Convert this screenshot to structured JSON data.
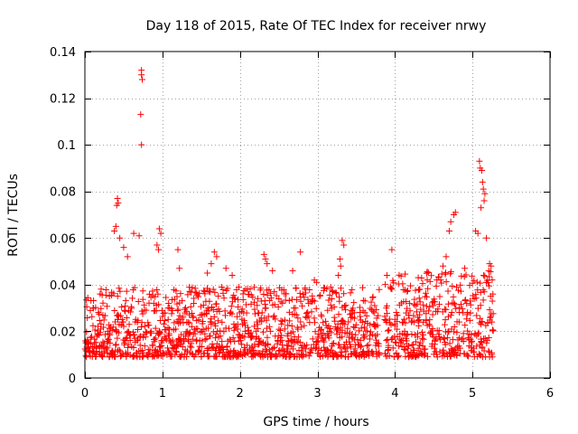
{
  "chart_data": {
    "type": "scatter",
    "title": "Day 118 of 2015, Rate Of TEC Index for receiver nrwy",
    "xlabel": "GPS time / hours",
    "ylabel": "ROTI / TECUs",
    "xlim": [
      0,
      6
    ],
    "ylim": [
      0,
      0.14
    ],
    "xticks": [
      0,
      1,
      2,
      3,
      4,
      5,
      6
    ],
    "xtick_labels": [
      "0",
      "1",
      "2",
      "3",
      "4",
      "5",
      "6"
    ],
    "yticks": [
      0,
      0.02,
      0.04,
      0.06,
      0.08,
      0.1,
      0.12,
      0.14
    ],
    "ytick_labels": [
      "0",
      "0.02",
      "0.04",
      "0.06",
      "0.08",
      "0.1",
      "0.12",
      "0.14"
    ],
    "grid": true,
    "marker": "+",
    "color": "#ff0000",
    "series": [
      {
        "name": "ROTI",
        "points": [
          [
            0.73,
            0.132
          ],
          [
            0.73,
            0.13
          ],
          [
            0.74,
            0.128
          ],
          [
            0.72,
            0.113
          ],
          [
            0.73,
            0.1
          ],
          [
            0.42,
            0.077
          ],
          [
            0.43,
            0.075
          ],
          [
            0.41,
            0.074
          ],
          [
            0.4,
            0.065
          ],
          [
            0.38,
            0.063
          ],
          [
            0.45,
            0.06
          ],
          [
            0.5,
            0.056
          ],
          [
            0.55,
            0.052
          ],
          [
            0.63,
            0.062
          ],
          [
            0.7,
            0.061
          ],
          [
            0.96,
            0.064
          ],
          [
            0.98,
            0.062
          ],
          [
            0.93,
            0.057
          ],
          [
            0.95,
            0.055
          ],
          [
            1.2,
            0.055
          ],
          [
            1.22,
            0.047
          ],
          [
            1.67,
            0.054
          ],
          [
            1.7,
            0.052
          ],
          [
            1.63,
            0.049
          ],
          [
            1.58,
            0.045
          ],
          [
            1.82,
            0.047
          ],
          [
            1.9,
            0.044
          ],
          [
            2.31,
            0.053
          ],
          [
            2.33,
            0.051
          ],
          [
            2.35,
            0.049
          ],
          [
            2.42,
            0.046
          ],
          [
            2.78,
            0.054
          ],
          [
            2.68,
            0.046
          ],
          [
            2.96,
            0.042
          ],
          [
            2.99,
            0.041
          ],
          [
            3.32,
            0.059
          ],
          [
            3.34,
            0.057
          ],
          [
            3.29,
            0.051
          ],
          [
            3.3,
            0.048
          ],
          [
            3.27,
            0.044
          ],
          [
            3.96,
            0.055
          ],
          [
            4.3,
            0.043
          ],
          [
            4.32,
            0.038
          ],
          [
            4.62,
            0.048
          ],
          [
            4.66,
            0.052
          ],
          [
            4.76,
            0.07
          ],
          [
            4.78,
            0.071
          ],
          [
            4.72,
            0.067
          ],
          [
            4.7,
            0.063
          ],
          [
            4.9,
            0.047
          ],
          [
            5.04,
            0.063
          ],
          [
            5.07,
            0.062
          ],
          [
            5.09,
            0.093
          ],
          [
            5.1,
            0.09
          ],
          [
            5.12,
            0.089
          ],
          [
            5.13,
            0.084
          ],
          [
            5.14,
            0.081
          ],
          [
            5.16,
            0.079
          ],
          [
            5.15,
            0.076
          ],
          [
            5.11,
            0.073
          ],
          [
            5.18,
            0.06
          ],
          [
            5.22,
            0.049
          ],
          [
            5.24,
            0.048
          ],
          [
            5.21,
            0.046
          ]
        ],
        "dense_band": {
          "segments": [
            {
              "x": [
                0.0,
                3.8
              ],
              "y_range": [
                0.005,
                0.035
              ]
            },
            {
              "x": [
                3.87,
                5.27
              ],
              "y_range": [
                0.005,
                0.042
              ]
            }
          ],
          "data_gap_x": [
            3.8,
            3.87
          ]
        }
      }
    ]
  }
}
